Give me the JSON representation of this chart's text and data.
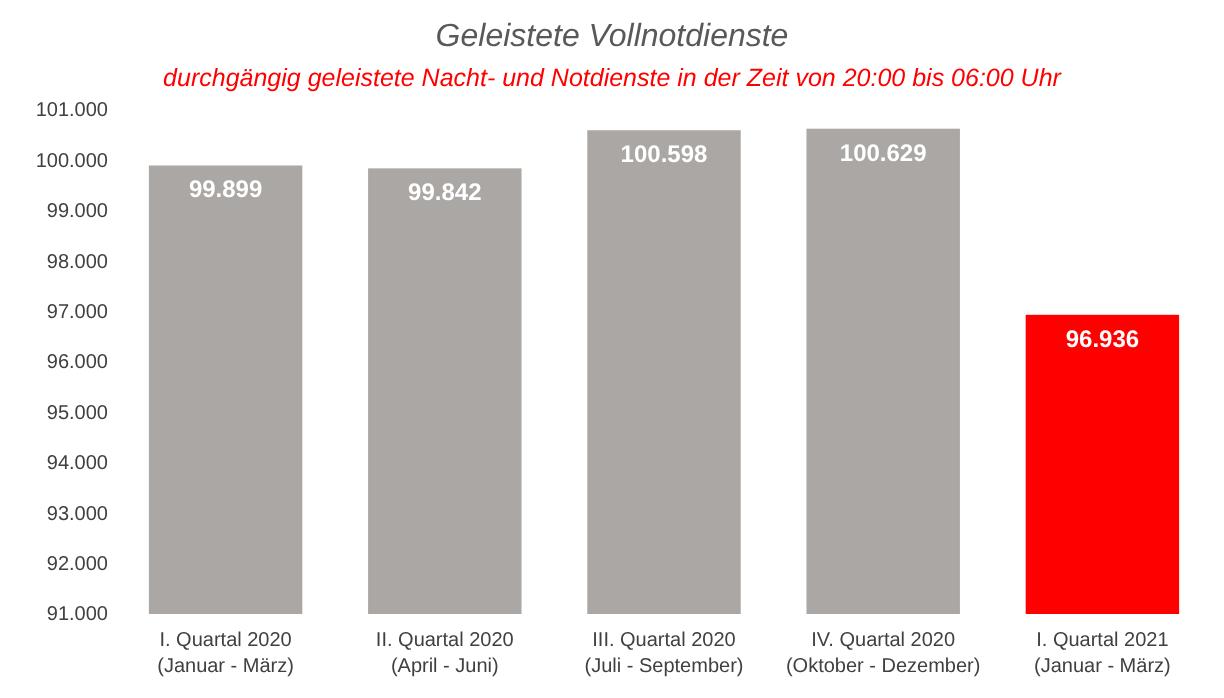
{
  "chart_data": {
    "type": "bar",
    "title": "Geleistete Vollnotdienste",
    "subtitle": "durchgängig geleistete Nacht- und Notdienste in der Zeit von 20:00 bis 06:00 Uhr",
    "categories": [
      "I. Quartal 2020\n(Januar - März)",
      "II. Quartal 2020\n(April - Juni)",
      "III. Quartal 2020\n(Juli - September)",
      "IV. Quartal 2020\n(Oktober - Dezember)",
      "I. Quartal 2021\n(Januar - März)"
    ],
    "values": [
      99899,
      99842,
      100598,
      100629,
      96936
    ],
    "colors": [
      "#aba7a4",
      "#aba7a4",
      "#aba7a4",
      "#aba7a4",
      "#ff0000"
    ],
    "value_labels": [
      "99.899",
      "99.842",
      "100.598",
      "100.629",
      "96.936"
    ],
    "ylim": [
      91000,
      101000
    ],
    "yticks": [
      {
        "value": 91000,
        "label": "91.000"
      },
      {
        "value": 92000,
        "label": "92.000"
      },
      {
        "value": 93000,
        "label": "93.000"
      },
      {
        "value": 94000,
        "label": "94.000"
      },
      {
        "value": 95000,
        "label": "95.000"
      },
      {
        "value": 96000,
        "label": "96.000"
      },
      {
        "value": 97000,
        "label": "97.000"
      },
      {
        "value": 98000,
        "label": "98.000"
      },
      {
        "value": 99000,
        "label": "99.000"
      },
      {
        "value": 100000,
        "label": "100.000"
      },
      {
        "value": 101000,
        "label": "101.000"
      }
    ],
    "grid": false
  }
}
